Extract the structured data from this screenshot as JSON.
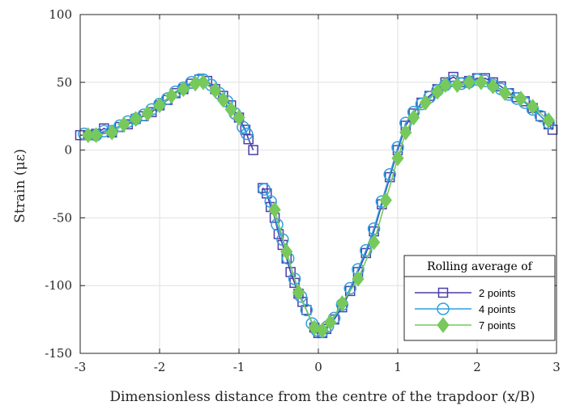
{
  "chart_data": {
    "type": "line",
    "xlabel": "Dimensionless distance from the centre of the trapdoor (x/B)",
    "ylabel": "Strain (με)",
    "xlim": [
      -3,
      3
    ],
    "ylim": [
      -150,
      100
    ],
    "xticks": [
      "-3",
      "-2",
      "-1",
      "0",
      "1",
      "2",
      "3"
    ],
    "yticks": [
      "100",
      "50",
      "0",
      "-50",
      "-100",
      "-150"
    ],
    "grid": true,
    "legend": {
      "title": "Rolling average of",
      "placement": "bottom-right"
    },
    "colors": {
      "series_2pt": "#4a3fa8",
      "series_4pt": "#2f9fe0",
      "series_7pt": "#77c95b",
      "grid": "#e1e1e1",
      "axis": "#262626"
    },
    "series": [
      {
        "name": "2 points",
        "marker": "square",
        "segments": [
          [
            [
              -3.0,
              11
            ],
            [
              -2.9,
              11
            ],
            [
              -2.8,
              12
            ],
            [
              -2.7,
              16
            ],
            [
              -2.6,
              13
            ],
            [
              -2.5,
              17
            ],
            [
              -2.4,
              19
            ],
            [
              -2.3,
              23
            ],
            [
              -2.2,
              25
            ],
            [
              -2.1,
              28
            ],
            [
              -2.0,
              33
            ],
            [
              -1.9,
              37
            ],
            [
              -1.8,
              42
            ],
            [
              -1.7,
              45
            ],
            [
              -1.6,
              49
            ],
            [
              -1.5,
              52
            ],
            [
              -1.4,
              51
            ],
            [
              -1.3,
              45
            ],
            [
              -1.2,
              40
            ],
            [
              -1.1,
              33
            ],
            [
              -1.0,
              24
            ],
            [
              -0.92,
              15
            ],
            [
              -0.88,
              8
            ],
            [
              -0.82,
              0
            ]
          ],
          [
            [
              -0.7,
              -28
            ],
            [
              -0.65,
              -32
            ],
            [
              -0.6,
              -42
            ],
            [
              -0.55,
              -50
            ],
            [
              -0.5,
              -62
            ],
            [
              -0.45,
              -70
            ],
            [
              -0.4,
              -80
            ],
            [
              -0.35,
              -90
            ],
            [
              -0.3,
              -98
            ],
            [
              -0.25,
              -106
            ],
            [
              -0.2,
              -112
            ],
            [
              -0.15,
              -118
            ],
            [
              -0.05,
              -131
            ],
            [
              0.0,
              -135
            ],
            [
              0.05,
              -135
            ],
            [
              0.1,
              -132
            ],
            [
              0.2,
              -125
            ],
            [
              0.3,
              -116
            ],
            [
              0.4,
              -104
            ],
            [
              0.5,
              -90
            ],
            [
              0.6,
              -76
            ],
            [
              0.7,
              -60
            ],
            [
              0.8,
              -40
            ],
            [
              0.9,
              -20
            ],
            [
              1.0,
              0
            ],
            [
              1.1,
              18
            ],
            [
              1.2,
              27
            ],
            [
              1.3,
              35
            ],
            [
              1.4,
              40
            ],
            [
              1.5,
              45
            ],
            [
              1.6,
              50
            ],
            [
              1.7,
              54
            ],
            [
              1.8,
              50
            ],
            [
              1.9,
              51
            ],
            [
              2.0,
              53
            ],
            [
              2.1,
              53
            ],
            [
              2.2,
              50
            ],
            [
              2.3,
              47
            ],
            [
              2.4,
              42
            ],
            [
              2.5,
              39
            ],
            [
              2.6,
              36
            ],
            [
              2.7,
              31
            ],
            [
              2.8,
              25
            ],
            [
              2.9,
              19
            ],
            [
              2.95,
              15
            ]
          ]
        ]
      },
      {
        "name": "4 points",
        "marker": "circle",
        "segments": [
          [
            [
              -2.95,
              12
            ],
            [
              -2.8,
              11
            ],
            [
              -2.7,
              14
            ],
            [
              -2.6,
              14
            ],
            [
              -2.5,
              18
            ],
            [
              -2.4,
              21
            ],
            [
              -2.3,
              23
            ],
            [
              -2.2,
              26
            ],
            [
              -2.1,
              30
            ],
            [
              -2.0,
              34
            ],
            [
              -1.9,
              38
            ],
            [
              -1.8,
              43
            ],
            [
              -1.7,
              46
            ],
            [
              -1.6,
              50
            ],
            [
              -1.5,
              52
            ],
            [
              -1.45,
              52
            ],
            [
              -1.35,
              48
            ],
            [
              -1.25,
              42
            ],
            [
              -1.15,
              36
            ],
            [
              -1.05,
              27
            ],
            [
              -0.95,
              17
            ],
            [
              -0.9,
              12
            ]
          ],
          [
            [
              -0.68,
              -29
            ],
            [
              -0.6,
              -38
            ],
            [
              -0.52,
              -55
            ],
            [
              -0.45,
              -66
            ],
            [
              -0.38,
              -80
            ],
            [
              -0.3,
              -95
            ],
            [
              -0.22,
              -108
            ],
            [
              -0.15,
              -118
            ],
            [
              -0.08,
              -128
            ],
            [
              -0.02,
              -133
            ],
            [
              0.05,
              -134
            ],
            [
              0.12,
              -130
            ],
            [
              0.2,
              -124
            ],
            [
              0.3,
              -114
            ],
            [
              0.4,
              -102
            ],
            [
              0.5,
              -88
            ],
            [
              0.6,
              -74
            ],
            [
              0.7,
              -58
            ],
            [
              0.8,
              -38
            ],
            [
              0.9,
              -18
            ],
            [
              1.0,
              2
            ],
            [
              1.1,
              20
            ],
            [
              1.2,
              28
            ],
            [
              1.3,
              34
            ],
            [
              1.4,
              39
            ],
            [
              1.5,
              44
            ],
            [
              1.6,
              48
            ],
            [
              1.7,
              51
            ],
            [
              1.8,
              49
            ],
            [
              1.9,
              50
            ],
            [
              2.0,
              52
            ],
            [
              2.1,
              51
            ],
            [
              2.2,
              48
            ],
            [
              2.3,
              45
            ],
            [
              2.4,
              41
            ],
            [
              2.5,
              38
            ],
            [
              2.6,
              35
            ],
            [
              2.7,
              30
            ],
            [
              2.8,
              25
            ],
            [
              2.9,
              20
            ]
          ]
        ]
      },
      {
        "name": "7 points",
        "marker": "diamond",
        "segments": [
          [
            [
              -2.9,
              11
            ],
            [
              -2.8,
              11
            ],
            [
              -2.6,
              13
            ],
            [
              -2.45,
              19
            ],
            [
              -2.3,
              23
            ],
            [
              -2.15,
              27
            ],
            [
              -2.0,
              33
            ],
            [
              -1.85,
              40
            ],
            [
              -1.7,
              45
            ],
            [
              -1.55,
              49
            ],
            [
              -1.45,
              50
            ],
            [
              -1.3,
              44
            ],
            [
              -1.2,
              37
            ],
            [
              -1.1,
              30
            ],
            [
              -1.0,
              24
            ]
          ],
          [
            [
              -0.55,
              -44
            ],
            [
              -0.4,
              -75
            ],
            [
              -0.25,
              -105
            ],
            [
              -0.05,
              -131
            ],
            [
              0.05,
              -133
            ],
            [
              0.15,
              -127
            ],
            [
              0.3,
              -113
            ],
            [
              0.5,
              -95
            ],
            [
              0.7,
              -68
            ],
            [
              0.85,
              -37
            ],
            [
              1.0,
              -6
            ],
            [
              1.1,
              13
            ],
            [
              1.2,
              24
            ],
            [
              1.35,
              35
            ],
            [
              1.5,
              43
            ],
            [
              1.6,
              48
            ],
            [
              1.75,
              48
            ],
            [
              1.9,
              50
            ],
            [
              2.05,
              50
            ],
            [
              2.2,
              47
            ],
            [
              2.35,
              42
            ],
            [
              2.55,
              38
            ],
            [
              2.7,
              32
            ],
            [
              2.9,
              22
            ]
          ]
        ]
      }
    ]
  }
}
